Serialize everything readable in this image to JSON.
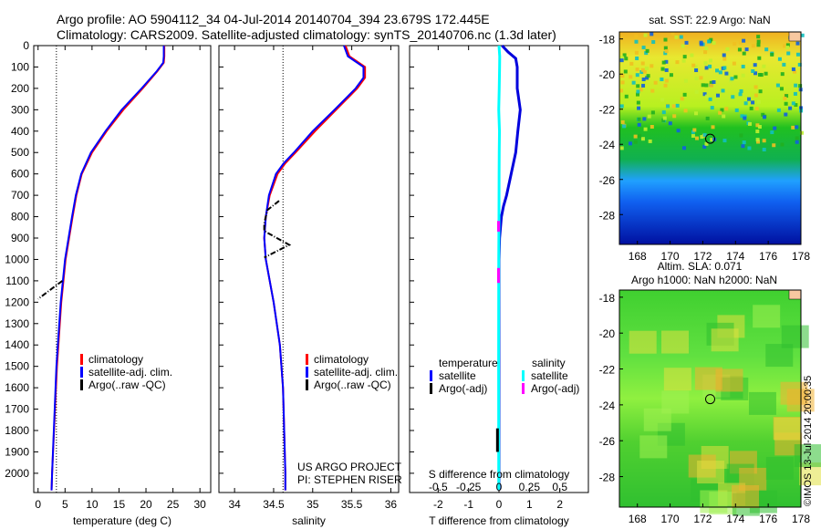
{
  "title": {
    "line1": "Argo profile: AO 5904112_34 04-Jul-2014 20140704_394 23.679S 172.445E",
    "line2": "Climatology: CARS2009. Satellite-adjusted climatology: synTS_20140706.nc (1.3d later)"
  },
  "credit": "US ARGO PROJECT",
  "pi": "PI: STEPHEN RISER",
  "watermark": "©IMOS 13-Jul-2014 20:00:35",
  "chart_data": [
    {
      "type": "line",
      "id": "temp",
      "xlabel": "temperature (deg C)",
      "xlim": [
        -0.8,
        32
      ],
      "ylim": [
        0,
        2090
      ],
      "xticks": [
        0,
        5,
        10,
        15,
        20,
        25,
        30
      ],
      "yticks": [
        0,
        100,
        200,
        300,
        400,
        500,
        600,
        700,
        800,
        900,
        1000,
        1100,
        1200,
        1300,
        1400,
        1500,
        1600,
        1700,
        1800,
        1900,
        2000
      ],
      "ref_line": 3.4,
      "legend": [
        "climatology",
        "satellite-adj. clim.",
        "Argo(..raw -QC)"
      ],
      "series": [
        {
          "name": "climatology",
          "color": "#ff0000",
          "depth": [
            0,
            50,
            80,
            120,
            200,
            300,
            400,
            500,
            600,
            700,
            800,
            1000,
            1200,
            1500,
            2000,
            2080
          ],
          "values": [
            23.4,
            23.4,
            23.3,
            22.1,
            19.4,
            15.8,
            12.7,
            10,
            8.1,
            7.1,
            6.4,
            5.1,
            4.3,
            3.5,
            2.6,
            2.5
          ]
        },
        {
          "name": "satellite-adj. clim.",
          "color": "#0000ff",
          "depth": [
            0,
            50,
            80,
            120,
            200,
            300,
            400,
            500,
            600,
            700,
            800,
            1000,
            1200,
            1500,
            2000,
            2080
          ],
          "values": [
            23.3,
            23.3,
            23.2,
            22,
            19.2,
            15.5,
            12.5,
            9.8,
            8,
            7,
            6.3,
            5,
            4.2,
            3.4,
            2.6,
            2.5
          ]
        },
        {
          "name": "Argo(..raw -QC)",
          "color": "#000000",
          "depth": [
            1100,
            1185
          ],
          "values": [
            4.5,
            0
          ]
        }
      ]
    },
    {
      "type": "line",
      "id": "sal",
      "xlabel": "salinity",
      "xlim": [
        33.8,
        36.1
      ],
      "ylim": [
        0,
        2090
      ],
      "xticks": [
        34,
        34.5,
        35,
        35.5,
        36
      ],
      "ref_line": 34.62,
      "legend": [
        "climatology",
        "satellite-adj. clim.",
        "Argo(..raw -QC)"
      ],
      "series": [
        {
          "name": "climatology",
          "color": "#ff0000",
          "depth": [
            0,
            50,
            100,
            150,
            200,
            300,
            400,
            500,
            550,
            600,
            700,
            800,
            900,
            1000,
            1200,
            1400,
            1600,
            2000,
            2080
          ],
          "values": [
            35.42,
            35.47,
            35.67,
            35.67,
            35.57,
            35.3,
            35.03,
            34.78,
            34.65,
            34.55,
            34.45,
            34.4,
            34.38,
            34.4,
            34.5,
            34.58,
            34.62,
            34.65,
            34.65
          ]
        },
        {
          "name": "satellite-adj. clim.",
          "color": "#0000ff",
          "depth": [
            0,
            50,
            100,
            150,
            200,
            300,
            400,
            500,
            550,
            600,
            700,
            800,
            900,
            1000,
            1200,
            1400,
            1600,
            2000,
            2080
          ],
          "values": [
            35.4,
            35.45,
            35.65,
            35.65,
            35.55,
            35.28,
            35.0,
            34.76,
            34.63,
            34.53,
            34.44,
            34.4,
            34.38,
            34.4,
            34.5,
            34.58,
            34.62,
            34.65,
            34.65
          ]
        },
        {
          "name": "Argo(..raw -QC)",
          "color": "#000000",
          "depth": [
            726,
            769,
            830,
            867,
            932,
            991
          ],
          "values": [
            34.57,
            34.42,
            34.38,
            34.38,
            34.7,
            34.38
          ]
        }
      ]
    },
    {
      "type": "line",
      "id": "diff",
      "xlabel": "T difference from climatology",
      "x2label": "S difference from climatology",
      "xlim": [
        -2.94,
        2.94
      ],
      "ylim": [
        0,
        2090
      ],
      "xticks": [
        -2,
        -1,
        0,
        1,
        2
      ],
      "x2ticks": [
        "-0.5",
        "-0.25",
        "0",
        "0.25",
        "0.5"
      ],
      "x2values": [
        -0.5,
        -0.25,
        0,
        0.25,
        0.5
      ],
      "ref_line": 0,
      "legend_headers": [
        "temperature",
        "salinity"
      ],
      "legend": [
        "satellite",
        "Argo(-adj)",
        "satellite",
        "Argo(-adj)"
      ],
      "series": [
        {
          "name": "T satellite",
          "color": "#0000dd",
          "depth": [
            0,
            30,
            60,
            100,
            200,
            300,
            400,
            500,
            600,
            700,
            750,
            800,
            900,
            1000,
            2080
          ],
          "values": [
            0.1,
            0.3,
            0.55,
            0.6,
            0.6,
            0.7,
            0.62,
            0.55,
            0.4,
            0.25,
            0.15,
            0.08,
            0.02,
            0,
            0
          ]
        },
        {
          "name": "S satellite",
          "color": "#00ffff",
          "depth": [
            0,
            50,
            100,
            200,
            300,
            400,
            500,
            600,
            800,
            1000,
            1500,
            2080
          ],
          "values": [
            0,
            0.006,
            0.005,
            0.002,
            -0.002,
            0.004,
            0.002,
            0.001,
            0,
            -0.002,
            -0.003,
            -0.002
          ]
        },
        {
          "name": "T Argo",
          "color": "#000000",
          "depth": [
            1790,
            1900
          ],
          "values": [
            -0.05,
            -0.05
          ]
        },
        {
          "name": "S Argo",
          "color": "#ff00ff",
          "depth": [
            820,
            870
          ],
          "values": [
            -0.004,
            -0.004
          ]
        },
        {
          "name": "S Argo",
          "color": "#ff00ff",
          "depth": [
            1040,
            1110
          ],
          "values": [
            -0.004,
            -0.004
          ]
        }
      ]
    },
    {
      "type": "heatmap",
      "id": "sst",
      "title": "sat. SST: 22.9 Argo: NaN",
      "xlim": [
        166.9,
        178
      ],
      "ylim": [
        -29.7,
        -17.6
      ],
      "xticks": [
        168,
        170,
        172,
        174,
        176,
        178
      ],
      "yticks": [
        -18,
        -20,
        -22,
        -24,
        -26,
        -28
      ],
      "marker": [
        172.45,
        -23.68
      ]
    },
    {
      "type": "heatmap",
      "id": "sla",
      "title1": "Altim. SLA: 0.071",
      "title2": "Argo h1000: NaN h2000: NaN",
      "xlim": [
        166.9,
        178
      ],
      "ylim": [
        -29.7,
        -17.6
      ],
      "xticks": [
        168,
        170,
        172,
        174,
        176,
        178
      ],
      "yticks": [
        -18,
        -20,
        -22,
        -24,
        -26,
        -28
      ],
      "marker": [
        172.45,
        -23.68
      ]
    }
  ]
}
